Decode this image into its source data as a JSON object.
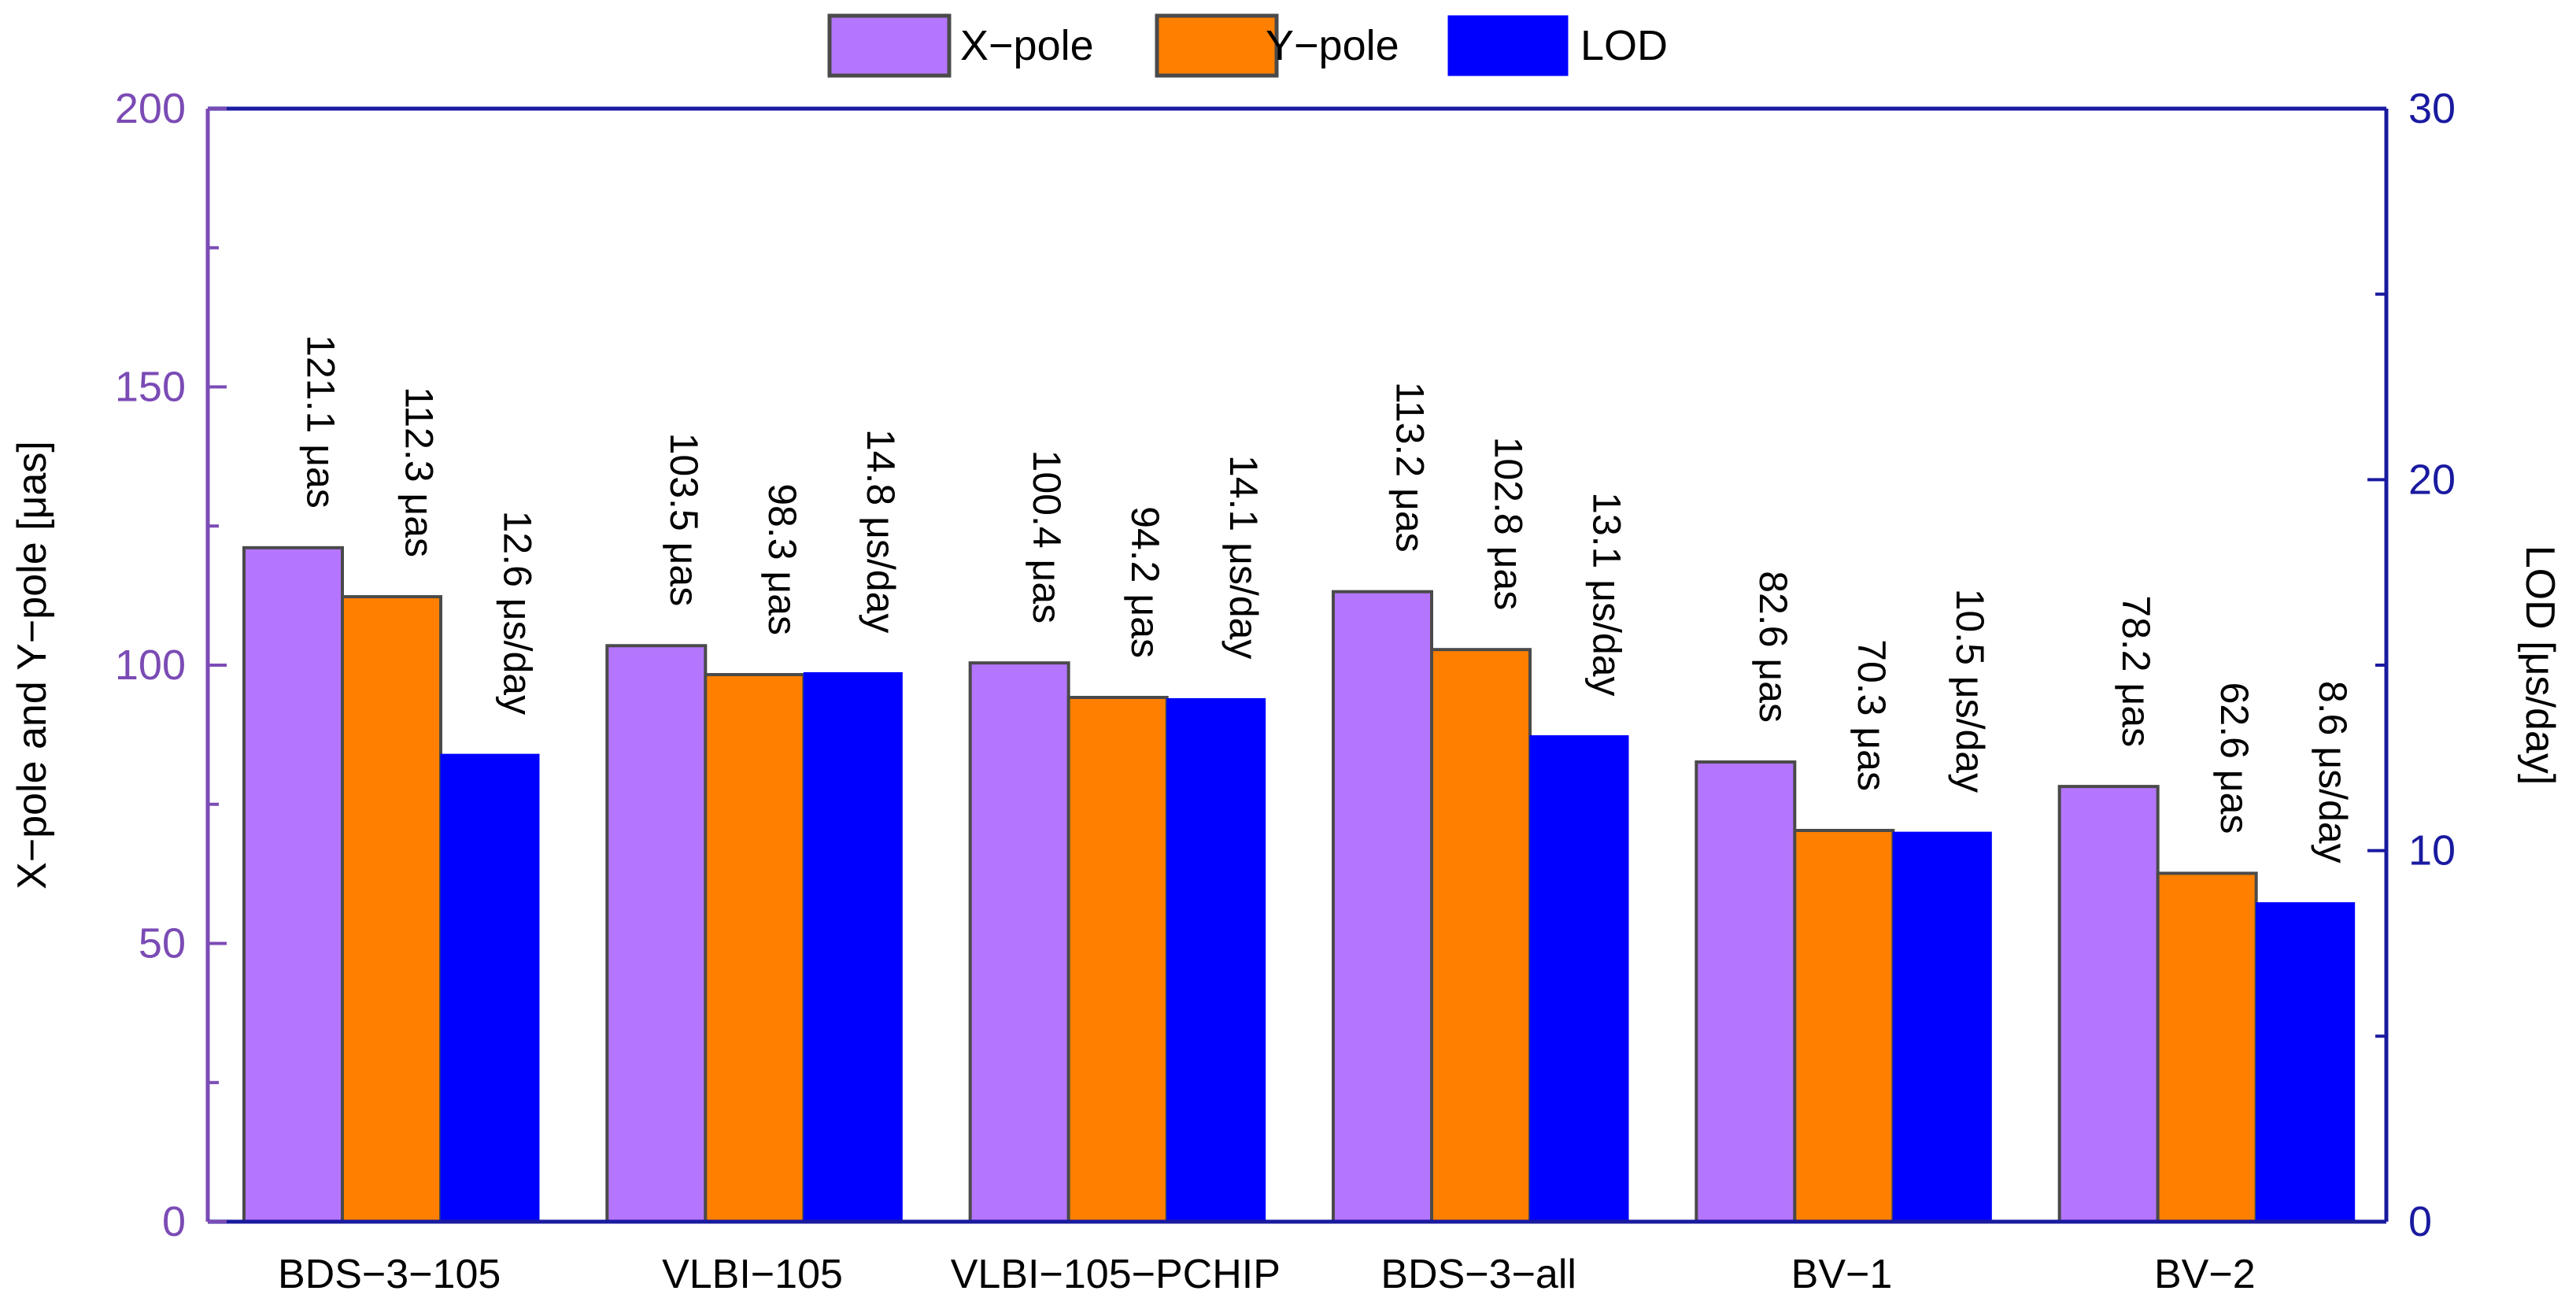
{
  "colors": {
    "x_pole": "#B576FF",
    "y_pole": "#FF8000",
    "lod": "#0000FF",
    "left_axis": "#7B4BB5",
    "right_axis": "#1A1AA0",
    "bar_edge": "#4A4A4A",
    "frame": "#1A1AA0"
  },
  "chart_data": {
    "type": "bar",
    "categories": [
      "BDS−3−105",
      "VLBI−105",
      "VLBI−105−PCHIP",
      "BDS−3−all",
      "BV−1",
      "BV−2"
    ],
    "series": [
      {
        "name": "X−pole",
        "axis": "left",
        "values": [
          121.1,
          103.5,
          100.4,
          113.2,
          82.6,
          78.2
        ],
        "labels": [
          "121.1 μas",
          "103.5 μas",
          "100.4 μas",
          "113.2 μas",
          "82.6 μas",
          "78.2 μas"
        ]
      },
      {
        "name": "Y−pole",
        "axis": "left",
        "values": [
          112.3,
          98.3,
          94.2,
          102.8,
          70.3,
          62.6
        ],
        "labels": [
          "112.3 μas",
          "98.3 μas",
          "94.2 μas",
          "102.8 μas",
          "70.3 μas",
          "62.6 μas"
        ]
      },
      {
        "name": "LOD",
        "axis": "right",
        "values": [
          12.6,
          14.8,
          14.1,
          13.1,
          10.5,
          8.6
        ],
        "labels": [
          "12.6 μs/day",
          "14.8 μs/day",
          "14.1 μs/day",
          "13.1 μs/day",
          "10.5 μs/day",
          "8.6 μs/day"
        ]
      }
    ],
    "ylabel_left": "X−pole and Y−pole [μas]",
    "ylabel_right": "LOD [μs/day]",
    "ylim_left": [
      0,
      200
    ],
    "ylim_right": [
      0,
      30
    ],
    "yticks_left": [
      0,
      50,
      100,
      150,
      200
    ],
    "yticks_right": [
      0,
      10,
      20,
      30
    ],
    "legend_position": "top-center",
    "grid": false
  }
}
